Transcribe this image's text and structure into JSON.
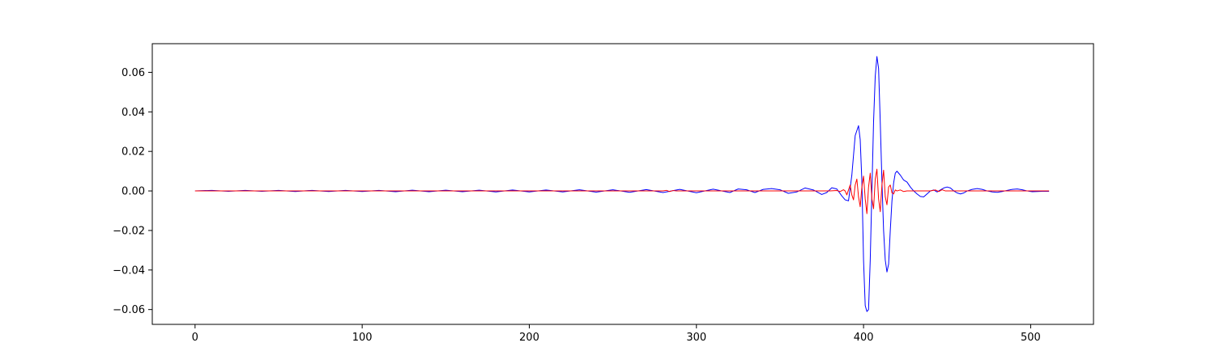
{
  "chart_data": {
    "type": "line",
    "title": "",
    "xlabel": "",
    "ylabel": "",
    "xlim": [
      -25.6,
      537.6
    ],
    "ylim": [
      -0.0675,
      0.0745
    ],
    "grid": false,
    "x_ticks": [
      0,
      100,
      200,
      300,
      400,
      500
    ],
    "x_tick_labels": [
      "0",
      "100",
      "200",
      "300",
      "400",
      "500"
    ],
    "y_ticks": [
      -0.06,
      -0.04,
      -0.02,
      0.0,
      0.02,
      0.04,
      0.06
    ],
    "y_tick_labels": [
      "−0.06",
      "−0.04",
      "−0.02",
      "0.00",
      "0.02",
      "0.04",
      "0.06"
    ],
    "series": [
      {
        "color": "#0000ff",
        "points": [
          [
            0,
            0.0
          ],
          [
            10,
            0.0003
          ],
          [
            20,
            -0.0002
          ],
          [
            30,
            0.0003
          ],
          [
            40,
            -0.0002
          ],
          [
            50,
            0.0003
          ],
          [
            60,
            -0.0003
          ],
          [
            70,
            0.0003
          ],
          [
            80,
            -0.0003
          ],
          [
            90,
            0.0003
          ],
          [
            100,
            -0.0003
          ],
          [
            110,
            0.0003
          ],
          [
            120,
            -0.0004
          ],
          [
            130,
            0.0004
          ],
          [
            140,
            -0.0004
          ],
          [
            150,
            0.0004
          ],
          [
            160,
            -0.0004
          ],
          [
            170,
            0.0004
          ],
          [
            180,
            -0.0005
          ],
          [
            190,
            0.0005
          ],
          [
            200,
            -0.0005
          ],
          [
            210,
            0.0005
          ],
          [
            220,
            -0.0005
          ],
          [
            230,
            0.0006
          ],
          [
            240,
            -0.0006
          ],
          [
            250,
            0.0006
          ],
          [
            260,
            -0.0007
          ],
          [
            270,
            0.0007
          ],
          [
            280,
            -0.0008
          ],
          [
            290,
            0.0008
          ],
          [
            300,
            -0.0009
          ],
          [
            310,
            0.0009
          ],
          [
            320,
            -0.0008
          ],
          [
            325,
            0.001
          ],
          [
            330,
            0.0006
          ],
          [
            335,
            -0.0008
          ],
          [
            340,
            0.0008
          ],
          [
            345,
            0.0012
          ],
          [
            350,
            0.0006
          ],
          [
            355,
            -0.0012
          ],
          [
            360,
            -0.0005
          ],
          [
            365,
            0.0015
          ],
          [
            370,
            0.0005
          ],
          [
            375,
            -0.0018
          ],
          [
            378,
            -0.0008
          ],
          [
            381,
            0.0016
          ],
          [
            384,
            0.001
          ],
          [
            387,
            -0.0025
          ],
          [
            389,
            -0.0045
          ],
          [
            391,
            -0.005
          ],
          [
            393,
            0.008
          ],
          [
            395,
            0.028
          ],
          [
            397,
            0.033
          ],
          [
            398,
            0.026
          ],
          [
            399,
            0.005
          ],
          [
            400,
            -0.035
          ],
          [
            401,
            -0.058
          ],
          [
            402,
            -0.061
          ],
          [
            403,
            -0.06
          ],
          [
            404,
            -0.035
          ],
          [
            405,
            0.0
          ],
          [
            406,
            0.035
          ],
          [
            407,
            0.058
          ],
          [
            408,
            0.068
          ],
          [
            409,
            0.062
          ],
          [
            410,
            0.035
          ],
          [
            411,
            0.005
          ],
          [
            412,
            -0.02
          ],
          [
            413,
            -0.035
          ],
          [
            414,
            -0.041
          ],
          [
            415,
            -0.037
          ],
          [
            416,
            -0.02
          ],
          [
            417,
            -0.005
          ],
          [
            418,
            0.004
          ],
          [
            419,
            0.009
          ],
          [
            420,
            0.01
          ],
          [
            422,
            0.008
          ],
          [
            424,
            0.0055
          ],
          [
            426,
            0.0045
          ],
          [
            428,
            0.002
          ],
          [
            430,
            0.0
          ],
          [
            432,
            -0.0015
          ],
          [
            434,
            -0.0028
          ],
          [
            436,
            -0.003
          ],
          [
            438,
            -0.0015
          ],
          [
            440,
            0.0
          ],
          [
            442,
            0.0005
          ],
          [
            444,
            -0.0005
          ],
          [
            446,
            0.0005
          ],
          [
            448,
            0.0015
          ],
          [
            450,
            0.002
          ],
          [
            452,
            0.0015
          ],
          [
            454,
            0.0
          ],
          [
            456,
            -0.001
          ],
          [
            458,
            -0.0015
          ],
          [
            460,
            -0.001
          ],
          [
            462,
            0.0
          ],
          [
            465,
            0.0008
          ],
          [
            468,
            0.0012
          ],
          [
            471,
            0.0008
          ],
          [
            474,
            0.0
          ],
          [
            477,
            -0.0005
          ],
          [
            480,
            -0.0007
          ],
          [
            483,
            -0.0003
          ],
          [
            486,
            0.0003
          ],
          [
            489,
            0.0008
          ],
          [
            492,
            0.001
          ],
          [
            495,
            0.0006
          ],
          [
            498,
            0.0
          ],
          [
            501,
            -0.0004
          ],
          [
            504,
            -0.0003
          ],
          [
            507,
            -0.0002
          ],
          [
            511,
            -0.0002
          ]
        ]
      },
      {
        "color": "#ff0000",
        "points": [
          [
            0,
            0.0
          ],
          [
            280,
            0.0
          ],
          [
            282,
            0.0003
          ],
          [
            284,
            -0.0003
          ],
          [
            286,
            0.0002
          ],
          [
            288,
            0.0
          ],
          [
            380,
            0.0
          ],
          [
            384,
            0.0002
          ],
          [
            386,
            -0.0003
          ],
          [
            388,
            0.0006
          ],
          [
            389,
            0.0
          ],
          [
            390,
            -0.002
          ],
          [
            391,
            0.0005
          ],
          [
            392,
            0.003
          ],
          [
            393,
            -0.002
          ],
          [
            394,
            -0.0045
          ],
          [
            395,
            0.003
          ],
          [
            396,
            0.006
          ],
          [
            397,
            -0.003
          ],
          [
            398,
            -0.008
          ],
          [
            399,
            0.002
          ],
          [
            400,
            0.0075
          ],
          [
            401,
            -0.004
          ],
          [
            402,
            -0.0115
          ],
          [
            403,
            0.002
          ],
          [
            404,
            0.009
          ],
          [
            405,
            -0.004
          ],
          [
            406,
            -0.009
          ],
          [
            407,
            0.006
          ],
          [
            408,
            0.011
          ],
          [
            409,
            -0.004
          ],
          [
            410,
            -0.0105
          ],
          [
            411,
            0.003
          ],
          [
            412,
            0.0105
          ],
          [
            413,
            -0.003
          ],
          [
            414,
            -0.007
          ],
          [
            415,
            0.002
          ],
          [
            416,
            0.003
          ],
          [
            417,
            -0.001
          ],
          [
            418,
            -0.0015
          ],
          [
            419,
            0.0005
          ],
          [
            420,
            0.0
          ],
          [
            422,
            0.0005
          ],
          [
            424,
            -0.0003
          ],
          [
            426,
            0.0
          ],
          [
            440,
            0.0
          ],
          [
            443,
            0.0005
          ],
          [
            445,
            -0.0003
          ],
          [
            447,
            0.0006
          ],
          [
            449,
            0.0
          ],
          [
            460,
            0.0
          ],
          [
            511,
            0.0
          ]
        ]
      }
    ]
  }
}
